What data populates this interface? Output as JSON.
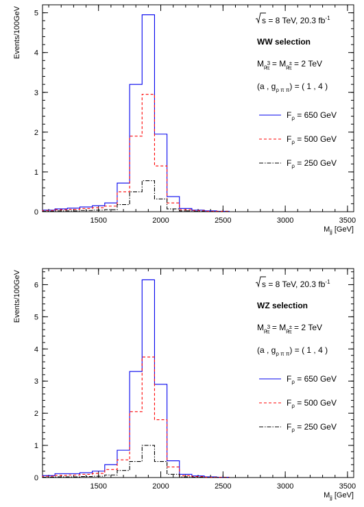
{
  "chart_data": [
    {
      "type": "histogram",
      "ylabel": "Events/100GeV",
      "xlabel_main": "M",
      "xlabel_sub": "jj",
      "xlabel_unit": " [GeV]",
      "xlim": [
        1050,
        3550
      ],
      "ylim": [
        0,
        5.2
      ],
      "xticks": [
        1500,
        2000,
        2500,
        3000,
        3500
      ],
      "yticks": [
        0,
        1,
        2,
        3,
        4,
        5
      ],
      "grid": false,
      "legend_position": "right",
      "bin_width": 100,
      "bin_edges": [
        1050,
        1150,
        1250,
        1350,
        1450,
        1550,
        1650,
        1750,
        1850,
        1950,
        2050,
        2150,
        2250,
        2350,
        2450,
        2550
      ],
      "annotations": {
        "energy": {
          "prefix": "s",
          "mid": " = 8 TeV, 20.3 fb",
          "sup": "-1"
        },
        "selection": "WW selection",
        "mass": {
          "M": "M",
          "sub1": "ρ",
          "sub1b": "π",
          "sup1": "3",
          "eq": " = ",
          "sup2": "±",
          "val": " = 2 TeV"
        },
        "coupling": {
          "pre": "(a , g",
          "sub": "ρ π π",
          "post": ") = ( 1 , 4 )"
        }
      },
      "series": [
        {
          "name": "F",
          "name_sub": "ρ",
          "name_val": " = 650 GeV",
          "color": "#0000ee",
          "dash": "none",
          "values": [
            0.04,
            0.07,
            0.09,
            0.12,
            0.15,
            0.22,
            0.72,
            3.2,
            4.95,
            1.95,
            0.38,
            0.08,
            0.04,
            0.02,
            0.01
          ]
        },
        {
          "name": "F",
          "name_sub": "ρ",
          "name_val": " = 500 GeV",
          "color": "#ff0000",
          "dash": "4,3",
          "values": [
            0.03,
            0.05,
            0.06,
            0.08,
            0.1,
            0.14,
            0.5,
            1.9,
            2.95,
            1.15,
            0.22,
            0.05,
            0.03,
            0.01,
            0.01
          ]
        },
        {
          "name": "F",
          "name_sub": "ρ",
          "name_val": " = 250 GeV",
          "color": "#000000",
          "dash": "6,2,1.5,2",
          "values": [
            0.01,
            0.02,
            0.02,
            0.03,
            0.04,
            0.05,
            0.18,
            0.5,
            0.78,
            0.32,
            0.07,
            0.02,
            0.01,
            0.0,
            0.0
          ]
        }
      ]
    },
    {
      "type": "histogram",
      "ylabel": "Events/100GeV",
      "xlabel_main": "M",
      "xlabel_sub": "jj",
      "xlabel_unit": " [GeV]",
      "xlim": [
        1050,
        3550
      ],
      "ylim": [
        0,
        6.5
      ],
      "xticks": [
        1500,
        2000,
        2500,
        3000,
        3500
      ],
      "yticks": [
        0,
        1,
        2,
        3,
        4,
        5,
        6
      ],
      "grid": false,
      "legend_position": "right",
      "bin_width": 100,
      "bin_edges": [
        1050,
        1150,
        1250,
        1350,
        1450,
        1550,
        1650,
        1750,
        1850,
        1950,
        2050,
        2150,
        2250,
        2350,
        2450,
        2550
      ],
      "annotations": {
        "energy": {
          "prefix": "s",
          "mid": " = 8 TeV, 20.3 fb",
          "sup": "-1"
        },
        "selection": "WZ selection",
        "mass": {
          "M": "M",
          "sub1": "ρ",
          "sub1b": "π",
          "sup1": "3",
          "eq": " = ",
          "sup2": "±",
          "val": " = 2 TeV"
        },
        "coupling": {
          "pre": "(a , g",
          "sub": "ρ π π",
          "post": ") = ( 1 , 4 )"
        }
      },
      "series": [
        {
          "name": "F",
          "name_sub": "ρ",
          "name_val": " = 650 GeV",
          "color": "#0000ee",
          "dash": "none",
          "values": [
            0.06,
            0.12,
            0.12,
            0.15,
            0.2,
            0.4,
            0.85,
            3.3,
            6.15,
            2.9,
            0.52,
            0.1,
            0.05,
            0.02,
            0.01
          ]
        },
        {
          "name": "F",
          "name_sub": "ρ",
          "name_val": " = 500 GeV",
          "color": "#ff0000",
          "dash": "4,3",
          "values": [
            0.04,
            0.07,
            0.08,
            0.1,
            0.13,
            0.25,
            0.55,
            2.05,
            3.75,
            1.8,
            0.33,
            0.06,
            0.03,
            0.01,
            0.01
          ]
        },
        {
          "name": "F",
          "name_sub": "ρ",
          "name_val": " = 250 GeV",
          "color": "#000000",
          "dash": "6,2,1.5,2",
          "values": [
            0.01,
            0.02,
            0.02,
            0.03,
            0.04,
            0.08,
            0.22,
            0.5,
            1.0,
            0.5,
            0.1,
            0.02,
            0.01,
            0.0,
            0.0
          ]
        }
      ]
    }
  ]
}
